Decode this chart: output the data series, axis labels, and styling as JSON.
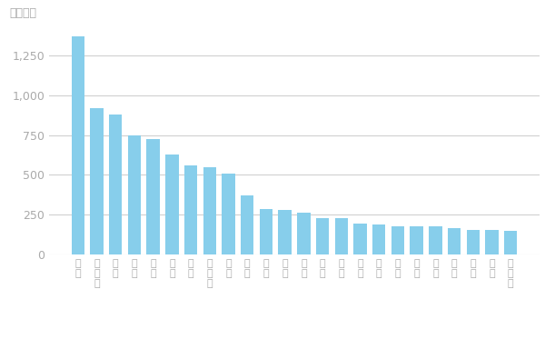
{
  "categories": [
    "東京",
    "神奈川",
    "大阪",
    "愛知",
    "埼玉",
    "千葉",
    "兵庫",
    "北海道",
    "福岡",
    "静岡",
    "茨城",
    "広島",
    "京都",
    "宮城",
    "新潟",
    "長野",
    "岐阜",
    "栃木",
    "群馬",
    "岡山",
    "福島",
    "三重",
    "熊本",
    "鹿児島"
  ],
  "values": [
    1370,
    920,
    880,
    750,
    725,
    625,
    560,
    550,
    505,
    370,
    285,
    280,
    260,
    230,
    225,
    195,
    185,
    175,
    175,
    175,
    165,
    155,
    155,
    145
  ],
  "bar_color": "#87CEEB",
  "ylabel": "（万人）",
  "ylim": [
    0,
    1450
  ],
  "yticks": [
    0,
    250,
    500,
    750,
    1000,
    1250
  ],
  "ytick_labels": [
    "0",
    "250",
    "500",
    "750",
    "1,000",
    "1,250"
  ],
  "background_color": "#ffffff",
  "grid_color": "#d0d0d0",
  "label_color": "#aaaaaa"
}
